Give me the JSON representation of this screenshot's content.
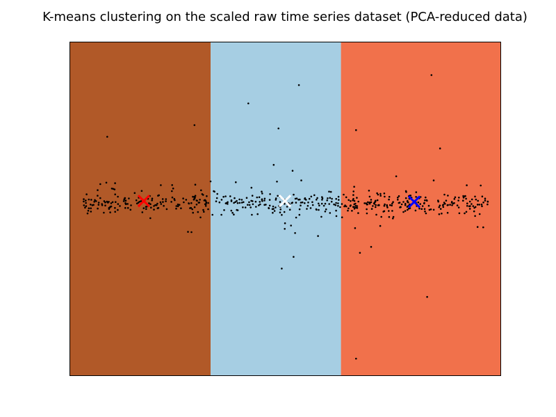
{
  "chart_data": {
    "type": "scatter",
    "title": "K-means clustering on the scaled raw time series dataset (PCA-reduced data)",
    "xlabel": "",
    "ylabel": "",
    "xlim": [
      -1,
      1
    ],
    "ylim": [
      -1,
      1
    ],
    "x_ticks": [],
    "y_ticks": [],
    "grid": false,
    "legend": "none",
    "regions": [
      {
        "x_from": -1.0,
        "x_to": -0.345,
        "color": "#b15928"
      },
      {
        "x_from": -0.345,
        "x_to": 0.26,
        "color": "#a6cee3"
      },
      {
        "x_from": 0.26,
        "x_to": 1.0,
        "color": "#f1714b"
      }
    ],
    "centroids": [
      {
        "x": -0.655,
        "y": 0.045,
        "color": "#ff0000"
      },
      {
        "x": 0.0,
        "y": 0.045,
        "color": "#ffffff"
      },
      {
        "x": 0.6,
        "y": 0.04,
        "color": "#0000ff"
      }
    ],
    "points_color": "#000000",
    "outliers": [
      [
        0.065,
        0.74
      ],
      [
        0.68,
        0.8
      ],
      [
        -0.17,
        0.63
      ],
      [
        -0.03,
        0.48
      ],
      [
        0.055,
        0.06
      ],
      [
        -0.42,
        0.5
      ],
      [
        0.04,
        -0.29
      ],
      [
        0.33,
        -0.9
      ],
      [
        0.66,
        -0.53
      ],
      [
        0.33,
        0.47
      ],
      [
        -0.45,
        -0.14
      ],
      [
        -0.42,
        0.07
      ],
      [
        -0.825,
        0.43
      ],
      [
        0.4,
        -0.23
      ],
      [
        -0.015,
        -0.36
      ],
      [
        0.72,
        0.36
      ]
    ]
  }
}
